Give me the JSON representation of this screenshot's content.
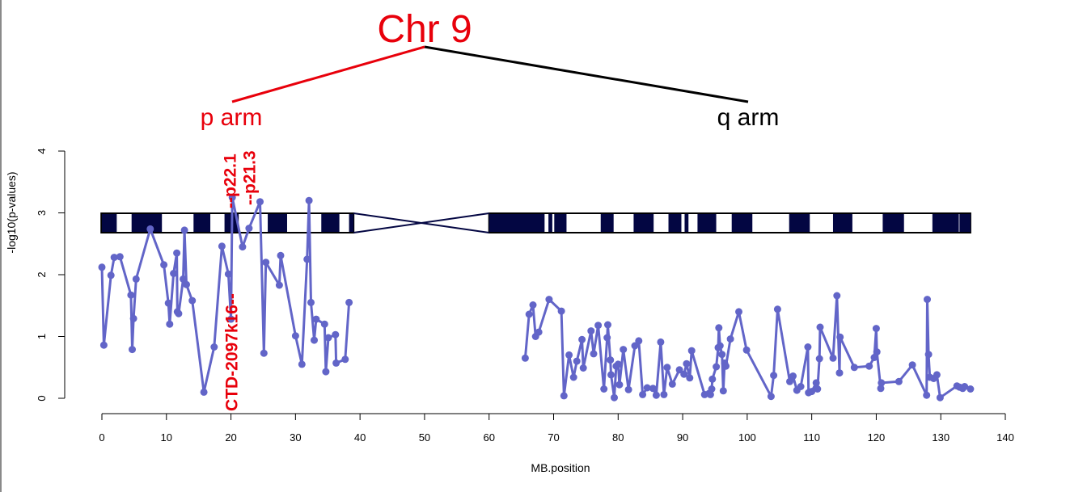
{
  "chart_data": {
    "type": "line",
    "title": "Chr 9",
    "xlabel": "MB.position",
    "ylabel": "-log10(p-values)",
    "xlim": [
      0,
      140
    ],
    "ylim": [
      0,
      4
    ],
    "x_ticks": [
      0,
      10,
      20,
      30,
      40,
      50,
      60,
      70,
      80,
      90,
      100,
      110,
      120,
      130,
      140
    ],
    "y_ticks": [
      0,
      1,
      2,
      3,
      4
    ],
    "arm_labels": {
      "p": "p arm",
      "q": "q arm"
    },
    "annotations": [
      {
        "text": "--p22.1",
        "x": 20
      },
      {
        "text": "--p21.3",
        "x": 23
      },
      {
        "text": "CTD-2097k16--",
        "x": 20
      }
    ],
    "centromere_mb": [
      39,
      60
    ],
    "series": [
      {
        "color": "#6265c8",
        "segments": [
          [
            [
              0,
              2.12
            ],
            [
              0.3,
              0.86
            ],
            [
              1.4,
              1.99
            ],
            [
              1.9,
              2.28
            ],
            [
              2.8,
              2.29
            ],
            [
              4.5,
              1.67
            ],
            [
              4.7,
              0.79
            ],
            [
              4.9,
              1.29
            ],
            [
              5.3,
              1.93
            ],
            [
              7.5,
              2.74
            ],
            [
              9.6,
              2.16
            ],
            [
              10.3,
              1.54
            ],
            [
              10.5,
              1.2
            ],
            [
              11.1,
              2.02
            ],
            [
              11.6,
              2.35
            ],
            [
              11.7,
              1.4
            ],
            [
              11.9,
              1.37
            ],
            [
              12.6,
              1.93
            ],
            [
              12.8,
              2.72
            ],
            [
              13.1,
              1.84
            ],
            [
              14,
              1.58
            ],
            [
              15.8,
              0.1
            ],
            [
              17.4,
              0.83
            ],
            [
              18.6,
              2.46
            ],
            [
              19.6,
              2.01
            ],
            [
              20,
              1.28
            ],
            [
              20.2,
              3.25
            ],
            [
              21.8,
              2.45
            ],
            [
              22.8,
              2.75
            ],
            [
              24.5,
              3.18
            ],
            [
              25.1,
              0.73
            ],
            [
              25.4,
              2.2
            ],
            [
              27.5,
              1.83
            ],
            [
              27.7,
              2.31
            ],
            [
              30,
              1.01
            ],
            [
              31,
              0.55
            ],
            [
              31.8,
              2.25
            ],
            [
              32.1,
              3.2
            ],
            [
              32.4,
              1.55
            ],
            [
              32.9,
              0.94
            ],
            [
              33.2,
              1.28
            ],
            [
              34.5,
              1.2
            ],
            [
              34.7,
              0.43
            ],
            [
              35.1,
              0.98
            ],
            [
              36.2,
              1.03
            ],
            [
              36.3,
              0.57
            ],
            [
              37.7,
              0.63
            ],
            [
              38.3,
              1.55
            ]
          ],
          [
            [
              65.6,
              0.65
            ],
            [
              66.2,
              1.36
            ],
            [
              66.8,
              1.51
            ],
            [
              67.2,
              1.0
            ],
            [
              67.7,
              1.07
            ],
            [
              69.3,
              1.6
            ],
            [
              71.2,
              1.41
            ],
            [
              71.6,
              0.04
            ],
            [
              72.4,
              0.7
            ],
            [
              73.1,
              0.34
            ],
            [
              73.6,
              0.6
            ],
            [
              74.4,
              0.95
            ],
            [
              74.6,
              0.49
            ],
            [
              75.8,
              1.09
            ],
            [
              76.2,
              0.72
            ],
            [
              76.9,
              1.18
            ],
            [
              77.8,
              0.15
            ],
            [
              78.3,
              0.98
            ],
            [
              78.4,
              1.19
            ],
            [
              78.8,
              0.62
            ],
            [
              78.9,
              0.38
            ],
            [
              79.4,
              0.01
            ],
            [
              79.7,
              0.52
            ],
            [
              80,
              0.55
            ],
            [
              80.2,
              0.22
            ],
            [
              80.8,
              0.79
            ],
            [
              81.6,
              0.14
            ],
            [
              82.6,
              0.85
            ],
            [
              83.2,
              0.93
            ],
            [
              83.8,
              0.06
            ],
            [
              84.5,
              0.17
            ],
            [
              85.4,
              0.16
            ],
            [
              85.9,
              0.05
            ],
            [
              86.6,
              0.91
            ],
            [
              87.1,
              0.06
            ],
            [
              87.6,
              0.5
            ],
            [
              88.4,
              0.23
            ],
            [
              89.5,
              0.46
            ],
            [
              90.2,
              0.39
            ],
            [
              90.6,
              0.56
            ],
            [
              91.1,
              0.33
            ],
            [
              91.4,
              0.77
            ],
            [
              93.4,
              0.06
            ],
            [
              94.1,
              0.08
            ],
            [
              94.3,
              0.06
            ],
            [
              94.5,
              0.15
            ],
            [
              94.6,
              0.31
            ],
            [
              95.2,
              0.51
            ],
            [
              95.5,
              0.82
            ],
            [
              95.6,
              1.14
            ],
            [
              95.8,
              0.85
            ],
            [
              96.1,
              0.71
            ],
            [
              96.3,
              0.12
            ],
            [
              96.5,
              0.57
            ],
            [
              96.7,
              0.52
            ],
            [
              97.4,
              0.96
            ],
            [
              98.7,
              1.4
            ],
            [
              99.9,
              0.78
            ],
            [
              103.7,
              0.03
            ],
            [
              104.1,
              0.37
            ],
            [
              104.7,
              1.44
            ],
            [
              106.6,
              0.27
            ],
            [
              107.1,
              0.36
            ],
            [
              107.7,
              0.13
            ],
            [
              108.3,
              0.19
            ],
            [
              109.4,
              0.83
            ],
            [
              109.5,
              0.09
            ],
            [
              110,
              0.11
            ],
            [
              110.7,
              0.25
            ],
            [
              110.9,
              0.15
            ],
            [
              111.2,
              0.64
            ],
            [
              111.3,
              1.15
            ],
            [
              113.3,
              0.65
            ],
            [
              113.9,
              1.66
            ],
            [
              114.3,
              0.41
            ],
            [
              114.4,
              0.99
            ],
            [
              116.6,
              0.5
            ],
            [
              118.9,
              0.52
            ],
            [
              119.7,
              0.66
            ],
            [
              120,
              1.13
            ],
            [
              120.1,
              0.75
            ],
            [
              120.7,
              0.16
            ],
            [
              120.8,
              0.25
            ],
            [
              123.5,
              0.27
            ],
            [
              125.6,
              0.54
            ],
            [
              127.8,
              0.05
            ],
            [
              127.9,
              1.6
            ],
            [
              128.1,
              0.71
            ],
            [
              128.3,
              0.34
            ],
            [
              128.9,
              0.32
            ],
            [
              129.4,
              0.38
            ],
            [
              129.9,
              0.01
            ],
            [
              132.5,
              0.2
            ],
            [
              132.9,
              0.18
            ],
            [
              133.4,
              0.16
            ],
            [
              133.7,
              0.19
            ],
            [
              134.6,
              0.15
            ]
          ]
        ]
      }
    ]
  }
}
